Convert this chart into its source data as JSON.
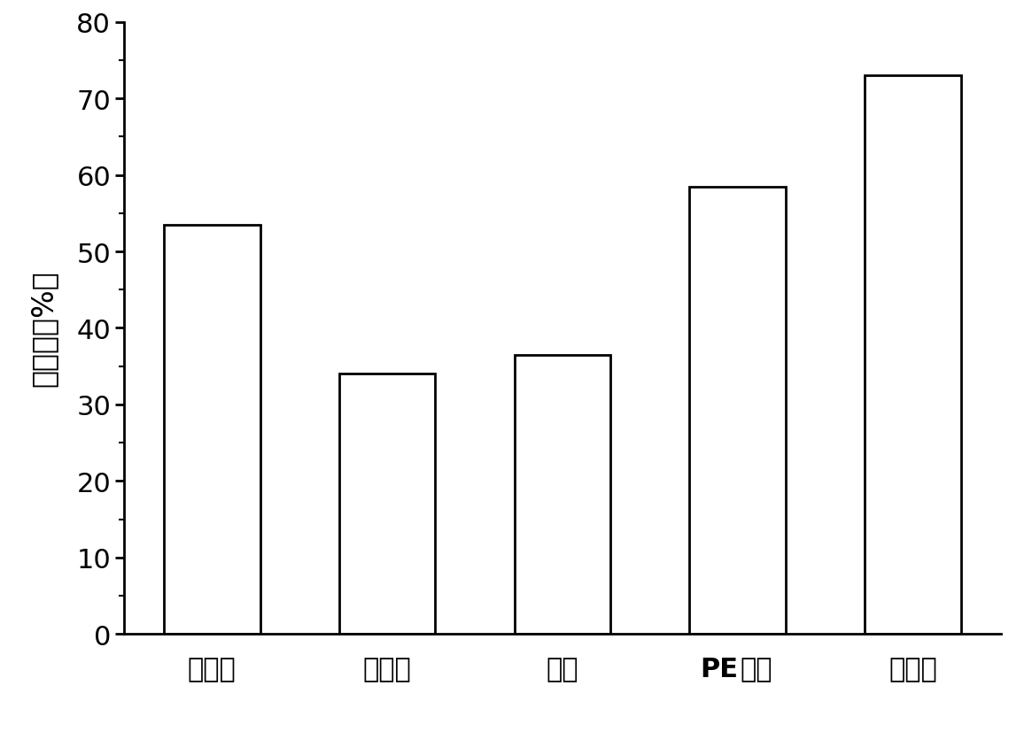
{
  "categories": [
    "未使用",
    "活性炭",
    "硅胶",
    "PE隔膜",
    "无纺布"
  ],
  "values": [
    53.5,
    34.0,
    36.5,
    58.5,
    73.0
  ],
  "bar_color": "#ffffff",
  "bar_edgecolor": "#000000",
  "ylabel": "萃取率（%）",
  "ylim": [
    0,
    80
  ],
  "yticks": [
    0,
    10,
    20,
    30,
    40,
    50,
    60,
    70,
    80
  ],
  "bar_width": 0.55,
  "linewidth": 2.0,
  "ylabel_fontsize": 24,
  "tick_fontsize": 22,
  "xlabel_fontsize": 22,
  "background_color": "#ffffff"
}
